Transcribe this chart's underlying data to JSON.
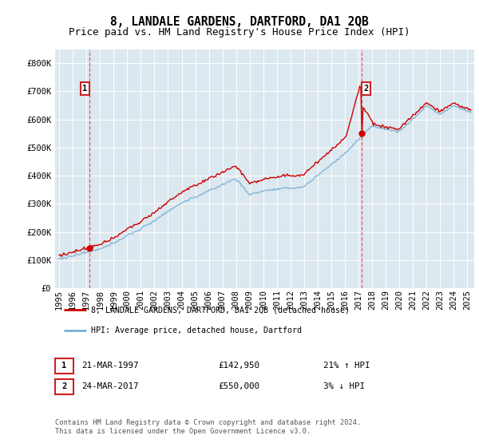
{
  "title": "8, LANDALE GARDENS, DARTFORD, DA1 2QB",
  "subtitle": "Price paid vs. HM Land Registry's House Price Index (HPI)",
  "ylim": [
    0,
    850000
  ],
  "xlim_start": 1994.7,
  "xlim_end": 2025.5,
  "yticks": [
    0,
    100000,
    200000,
    300000,
    400000,
    500000,
    600000,
    700000,
    800000
  ],
  "ytick_labels": [
    "£0",
    "£100K",
    "£200K",
    "£300K",
    "£400K",
    "£500K",
    "£600K",
    "£700K",
    "£800K"
  ],
  "xticks": [
    1995,
    1996,
    1997,
    1998,
    1999,
    2000,
    2001,
    2002,
    2003,
    2004,
    2005,
    2006,
    2007,
    2008,
    2009,
    2010,
    2011,
    2012,
    2013,
    2014,
    2015,
    2016,
    2017,
    2018,
    2019,
    2020,
    2021,
    2022,
    2023,
    2024,
    2025
  ],
  "sale1_x": 1997.22,
  "sale1_y": 142950,
  "sale1_label": "1",
  "sale2_x": 2017.23,
  "sale2_y": 550000,
  "sale2_label": "2",
  "red_line_color": "#cc0000",
  "blue_line_color": "#7ab0d4",
  "dashed_line_color": "#dd4444",
  "plot_bg_color": "#dce8f0",
  "legend_entry1": "8, LANDALE GARDENS, DARTFORD, DA1 2QB (detached house)",
  "legend_entry2": "HPI: Average price, detached house, Dartford",
  "table_row1": [
    "1",
    "21-MAR-1997",
    "£142,950",
    "21% ↑ HPI"
  ],
  "table_row2": [
    "2",
    "24-MAR-2017",
    "£550,000",
    "3% ↓ HPI"
  ],
  "footer": "Contains HM Land Registry data © Crown copyright and database right 2024.\nThis data is licensed under the Open Government Licence v3.0.",
  "title_fontsize": 10.5,
  "subtitle_fontsize": 9,
  "tick_fontsize": 7.5
}
